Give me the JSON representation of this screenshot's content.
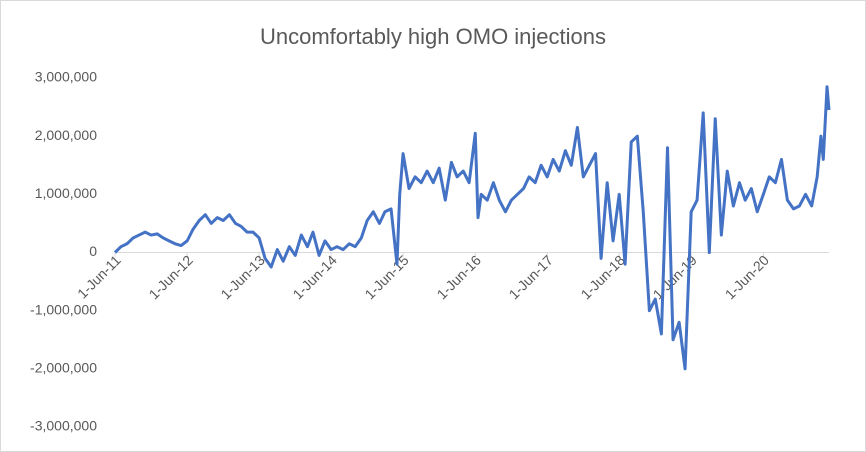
{
  "chart_data": {
    "type": "line",
    "title": "Uncomfortably high OMO injections",
    "x": [
      "2011-06-01",
      "2011-07-01",
      "2011-08-01",
      "2011-09-01",
      "2011-10-01",
      "2011-11-01",
      "2011-12-01",
      "2012-01-01",
      "2012-02-01",
      "2012-03-01",
      "2012-04-01",
      "2012-05-01",
      "2012-06-01",
      "2012-07-01",
      "2012-08-01",
      "2012-09-01",
      "2012-10-01",
      "2012-11-01",
      "2012-12-01",
      "2013-01-01",
      "2013-02-01",
      "2013-03-01",
      "2013-04-01",
      "2013-05-01",
      "2013-06-01",
      "2013-07-01",
      "2013-08-01",
      "2013-09-01",
      "2013-10-01",
      "2013-11-01",
      "2013-12-01",
      "2014-01-01",
      "2014-02-01",
      "2014-03-01",
      "2014-04-01",
      "2014-05-01",
      "2014-06-01",
      "2014-07-01",
      "2014-08-01",
      "2014-09-01",
      "2014-10-01",
      "2014-11-01",
      "2014-12-01",
      "2015-01-01",
      "2015-02-01",
      "2015-03-01",
      "2015-04-01",
      "2015-05-01",
      "2015-05-15",
      "2015-06-01",
      "2015-07-01",
      "2015-08-01",
      "2015-09-01",
      "2015-10-01",
      "2015-11-01",
      "2015-12-01",
      "2016-01-01",
      "2016-02-01",
      "2016-03-01",
      "2016-04-01",
      "2016-05-01",
      "2016-06-01",
      "2016-06-15",
      "2016-07-01",
      "2016-08-01",
      "2016-09-01",
      "2016-10-01",
      "2016-11-01",
      "2016-12-01",
      "2017-01-01",
      "2017-02-01",
      "2017-03-01",
      "2017-04-01",
      "2017-05-01",
      "2017-06-01",
      "2017-07-01",
      "2017-08-01",
      "2017-09-01",
      "2017-10-01",
      "2017-11-01",
      "2017-12-01",
      "2018-01-01",
      "2018-02-01",
      "2018-03-01",
      "2018-04-01",
      "2018-05-01",
      "2018-06-01",
      "2018-07-01",
      "2018-08-01",
      "2018-09-01",
      "2018-10-01",
      "2018-11-01",
      "2018-12-01",
      "2019-01-01",
      "2019-02-01",
      "2019-03-01",
      "2019-04-01",
      "2019-05-01",
      "2019-06-01",
      "2019-07-01",
      "2019-08-01",
      "2019-09-01",
      "2019-10-01",
      "2019-11-01",
      "2019-12-01",
      "2020-01-01",
      "2020-02-01",
      "2020-03-01",
      "2020-04-01",
      "2020-05-01",
      "2020-06-01",
      "2020-07-01",
      "2020-08-01",
      "2020-09-01",
      "2020-10-01",
      "2020-11-01",
      "2020-12-01",
      "2021-01-01",
      "2021-02-01",
      "2021-03-01",
      "2021-03-20",
      "2021-04-01",
      "2021-04-20",
      "2021-04-30"
    ],
    "values": [
      0,
      100000,
      150000,
      250000,
      300000,
      350000,
      300000,
      320000,
      250000,
      200000,
      150000,
      120000,
      200000,
      400000,
      550000,
      650000,
      500000,
      600000,
      550000,
      650000,
      500000,
      450000,
      350000,
      350000,
      250000,
      -100000,
      -250000,
      50000,
      -150000,
      100000,
      -50000,
      300000,
      100000,
      350000,
      -50000,
      200000,
      50000,
      100000,
      50000,
      150000,
      100000,
      250000,
      550000,
      700000,
      500000,
      700000,
      750000,
      -200000,
      1000000,
      1700000,
      1100000,
      1300000,
      1200000,
      1400000,
      1200000,
      1450000,
      900000,
      1550000,
      1300000,
      1400000,
      1200000,
      2050000,
      600000,
      1000000,
      900000,
      1200000,
      900000,
      700000,
      900000,
      1000000,
      1100000,
      1300000,
      1200000,
      1500000,
      1300000,
      1600000,
      1400000,
      1750000,
      1500000,
      2150000,
      1300000,
      1500000,
      1700000,
      -100000,
      1200000,
      200000,
      1000000,
      -200000,
      1900000,
      2000000,
      700000,
      -1000000,
      -800000,
      -1400000,
      1800000,
      -1500000,
      -1200000,
      -2000000,
      700000,
      900000,
      2400000,
      0,
      2300000,
      300000,
      1400000,
      800000,
      1200000,
      900000,
      1100000,
      700000,
      1000000,
      1300000,
      1200000,
      1600000,
      900000,
      750000,
      800000,
      1000000,
      800000,
      1300000,
      2000000,
      1600000,
      2850000,
      2450000
    ],
    "color": "#4472c4",
    "xlim": [
      "2011-06-01",
      "2021-04-30"
    ],
    "xticks": [
      {
        "value": "2011-06-01",
        "label": "1-Jun-11"
      },
      {
        "value": "2012-06-01",
        "label": "1-Jun-12"
      },
      {
        "value": "2013-06-01",
        "label": "1-Jun-13"
      },
      {
        "value": "2014-06-01",
        "label": "1-Jun-14"
      },
      {
        "value": "2015-06-01",
        "label": "1-Jun-15"
      },
      {
        "value": "2016-06-01",
        "label": "1-Jun-16"
      },
      {
        "value": "2017-06-01",
        "label": "1-Jun-17"
      },
      {
        "value": "2018-06-01",
        "label": "1-Jun-18"
      },
      {
        "value": "2019-06-01",
        "label": "1-Jun-19"
      },
      {
        "value": "2020-06-01",
        "label": "1-Jun-20"
      }
    ],
    "ylim": [
      -3000000,
      3000000
    ],
    "yticks": [
      {
        "value": -3000000,
        "label": "-3,000,000"
      },
      {
        "value": -2000000,
        "label": "-2,000,000"
      },
      {
        "value": -1000000,
        "label": "-1,000,000"
      },
      0,
      {
        "value": 1000000,
        "label": "1,000,000"
      },
      {
        "value": 2000000,
        "label": "2,000,000"
      },
      {
        "value": 3000000,
        "label": "3,000,000"
      }
    ],
    "grid": false
  }
}
